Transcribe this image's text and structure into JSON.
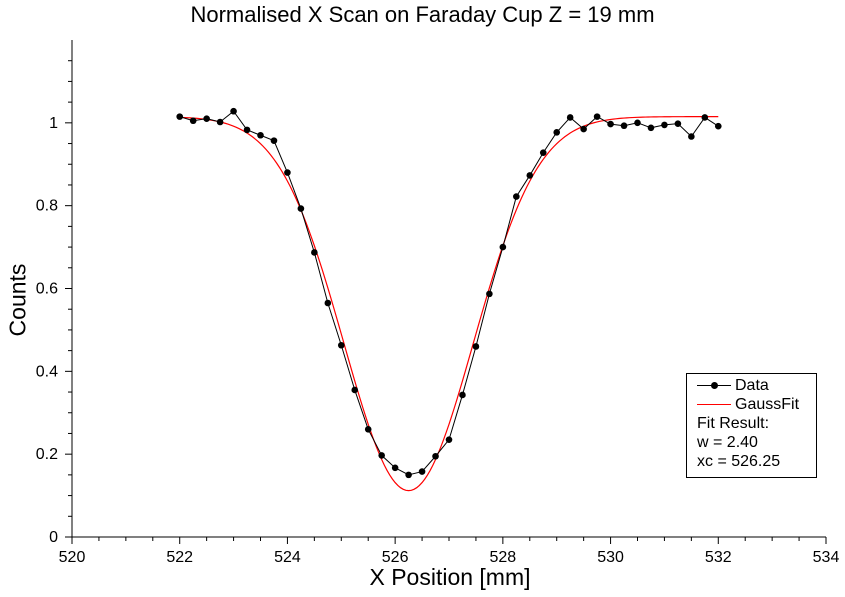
{
  "chart_data": {
    "type": "line",
    "title": "Normalised X Scan on Faraday Cup Z = 19 mm",
    "xlabel": "X Position [mm]",
    "ylabel": "Counts",
    "xlim": [
      520,
      534
    ],
    "ylim": [
      0,
      1.2
    ],
    "xticks": [
      520,
      522,
      524,
      526,
      528,
      530,
      532,
      534
    ],
    "yticks": [
      0,
      0.2,
      0.4,
      0.6,
      0.8,
      1
    ],
    "xtick_labels": [
      "520",
      "522",
      "524",
      "526",
      "528",
      "530",
      "532",
      "534"
    ],
    "ytick_labels": [
      "0",
      "0.2",
      "0.4",
      "0.6",
      "0.8",
      "1"
    ],
    "grid": false,
    "legend_position": "bottom-right",
    "series": [
      {
        "name": "Data",
        "color": "#000000",
        "marker": "circle",
        "x": [
          522,
          522.25,
          522.5,
          522.75,
          523,
          523.25,
          523.5,
          523.75,
          524,
          524.25,
          524.5,
          524.75,
          525,
          525.25,
          525.5,
          525.75,
          526,
          526.25,
          526.5,
          526.75,
          527,
          527.25,
          527.5,
          527.75,
          528,
          528.25,
          528.5,
          528.75,
          529,
          529.25,
          529.5,
          529.75,
          530,
          530.25,
          530.5,
          530.75,
          531,
          531.25,
          531.5,
          531.75,
          532
        ],
        "y": [
          1.015,
          1.005,
          1.01,
          1.002,
          1.028,
          0.983,
          0.97,
          0.957,
          0.88,
          0.793,
          0.687,
          0.565,
          0.463,
          0.355,
          0.26,
          0.197,
          0.167,
          0.15,
          0.158,
          0.195,
          0.235,
          0.343,
          0.46,
          0.587,
          0.7,
          0.822,
          0.873,
          0.928,
          0.977,
          1.013,
          0.985,
          1.015,
          0.997,
          0.993,
          1.0,
          0.988,
          0.995,
          0.998,
          0.967,
          1.013,
          0.992
        ]
      },
      {
        "name": "GaussFit",
        "color": "#ff0000",
        "model": "gaussian",
        "baseline": 1.015,
        "amplitude": -0.903,
        "xc": 526.25,
        "w": 2.4,
        "x_range": [
          522,
          532
        ]
      }
    ],
    "annotations": [
      "Fit Result:",
      "w = 2.40",
      "xc = 526.25"
    ]
  }
}
